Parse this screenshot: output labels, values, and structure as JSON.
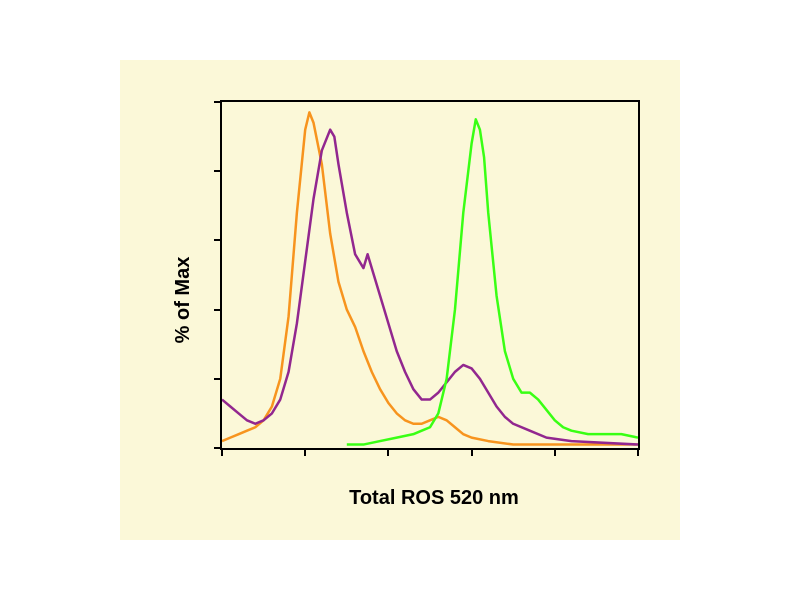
{
  "chart": {
    "type": "histogram-overlay",
    "background_color": "#fbf8d8",
    "border_color": "#000000",
    "border_width": 2,
    "xlabel": "Total ROS 520 nm",
    "ylabel": "% of Max",
    "label_fontsize": 20,
    "label_fontweight": "bold",
    "label_color": "#000000",
    "xlim": [
      0,
      100
    ],
    "ylim": [
      0,
      100
    ],
    "y_ticks": [
      0,
      20,
      40,
      60,
      80,
      100
    ],
    "x_ticks": [
      0,
      20,
      40,
      60,
      80,
      100
    ],
    "line_width": 2.5,
    "series": [
      {
        "name": "orange",
        "color": "#f7941e",
        "points": [
          [
            0,
            2
          ],
          [
            2,
            3
          ],
          [
            4,
            4
          ],
          [
            6,
            5
          ],
          [
            8,
            6
          ],
          [
            10,
            8
          ],
          [
            12,
            12
          ],
          [
            14,
            20
          ],
          [
            16,
            38
          ],
          [
            18,
            68
          ],
          [
            20,
            92
          ],
          [
            21,
            97
          ],
          [
            22,
            94
          ],
          [
            24,
            82
          ],
          [
            26,
            62
          ],
          [
            28,
            48
          ],
          [
            30,
            40
          ],
          [
            32,
            35
          ],
          [
            34,
            28
          ],
          [
            36,
            22
          ],
          [
            38,
            17
          ],
          [
            40,
            13
          ],
          [
            42,
            10
          ],
          [
            44,
            8
          ],
          [
            46,
            7
          ],
          [
            48,
            7
          ],
          [
            50,
            8
          ],
          [
            52,
            9
          ],
          [
            54,
            8
          ],
          [
            56,
            6
          ],
          [
            58,
            4
          ],
          [
            60,
            3
          ],
          [
            64,
            2
          ],
          [
            70,
            1
          ],
          [
            80,
            1
          ],
          [
            100,
            1
          ]
        ]
      },
      {
        "name": "purple",
        "color": "#92278f",
        "points": [
          [
            0,
            14
          ],
          [
            2,
            12
          ],
          [
            4,
            10
          ],
          [
            6,
            8
          ],
          [
            8,
            7
          ],
          [
            10,
            8
          ],
          [
            12,
            10
          ],
          [
            14,
            14
          ],
          [
            16,
            22
          ],
          [
            18,
            36
          ],
          [
            20,
            54
          ],
          [
            22,
            72
          ],
          [
            24,
            86
          ],
          [
            26,
            92
          ],
          [
            27,
            90
          ],
          [
            28,
            82
          ],
          [
            30,
            68
          ],
          [
            32,
            56
          ],
          [
            34,
            52
          ],
          [
            35,
            56
          ],
          [
            36,
            52
          ],
          [
            38,
            44
          ],
          [
            40,
            36
          ],
          [
            42,
            28
          ],
          [
            44,
            22
          ],
          [
            46,
            17
          ],
          [
            48,
            14
          ],
          [
            50,
            14
          ],
          [
            52,
            16
          ],
          [
            54,
            19
          ],
          [
            56,
            22
          ],
          [
            58,
            24
          ],
          [
            60,
            23
          ],
          [
            62,
            20
          ],
          [
            64,
            16
          ],
          [
            66,
            12
          ],
          [
            68,
            9
          ],
          [
            70,
            7
          ],
          [
            74,
            5
          ],
          [
            78,
            3
          ],
          [
            84,
            2
          ],
          [
            100,
            1
          ]
        ]
      },
      {
        "name": "green",
        "color": "#39ff14",
        "points": [
          [
            30,
            1
          ],
          [
            34,
            1
          ],
          [
            38,
            2
          ],
          [
            42,
            3
          ],
          [
            46,
            4
          ],
          [
            48,
            5
          ],
          [
            50,
            6
          ],
          [
            52,
            10
          ],
          [
            54,
            20
          ],
          [
            56,
            40
          ],
          [
            58,
            68
          ],
          [
            60,
            88
          ],
          [
            61,
            95
          ],
          [
            62,
            92
          ],
          [
            63,
            84
          ],
          [
            64,
            68
          ],
          [
            66,
            44
          ],
          [
            68,
            28
          ],
          [
            70,
            20
          ],
          [
            72,
            16
          ],
          [
            74,
            16
          ],
          [
            76,
            14
          ],
          [
            78,
            11
          ],
          [
            80,
            8
          ],
          [
            82,
            6
          ],
          [
            84,
            5
          ],
          [
            88,
            4
          ],
          [
            92,
            4
          ],
          [
            96,
            4
          ],
          [
            100,
            3
          ]
        ]
      }
    ]
  }
}
